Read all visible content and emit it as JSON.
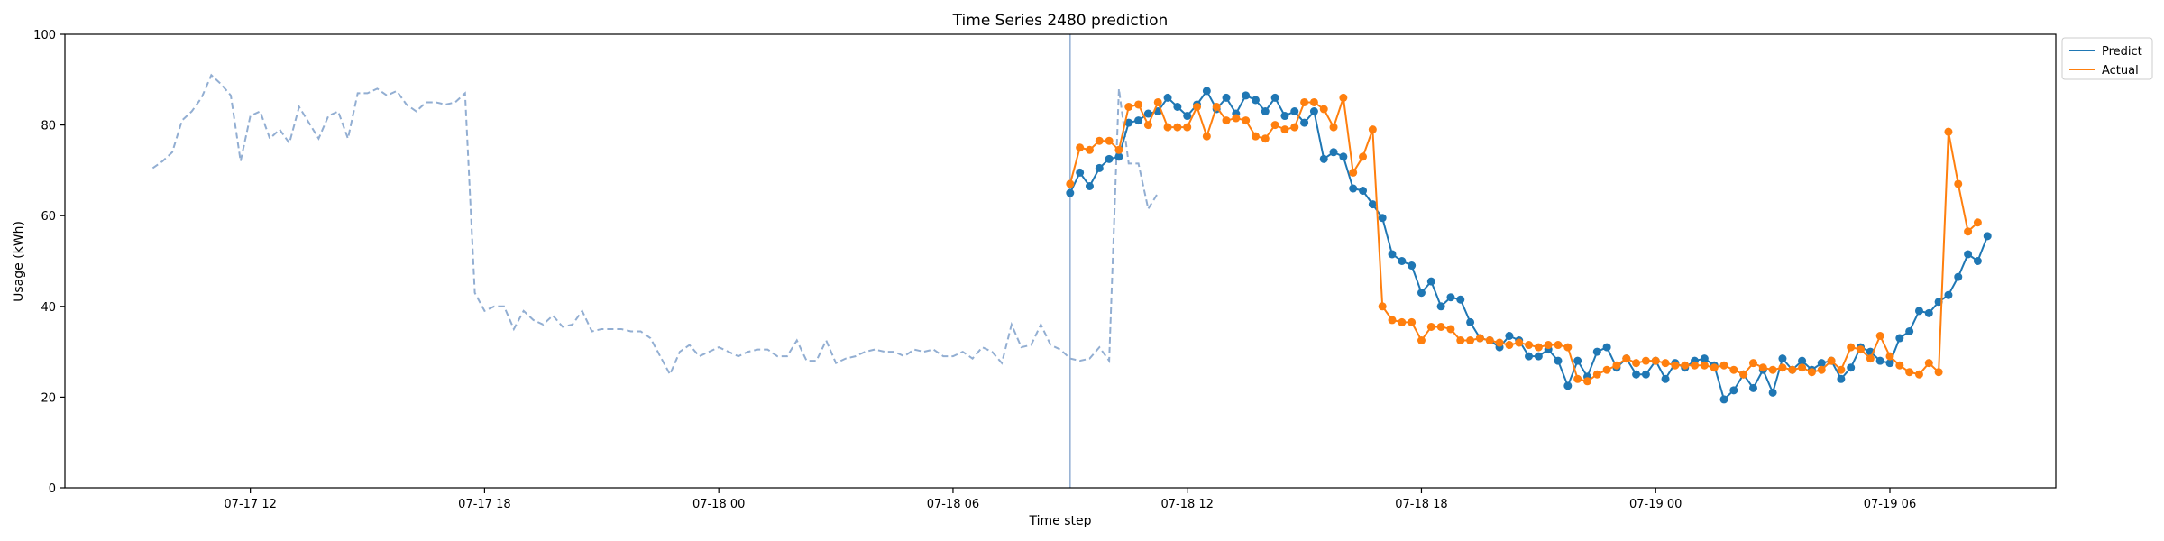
{
  "chart_data": {
    "type": "line",
    "title": "Time Series 2480 prediction",
    "xlabel": "Time step",
    "ylabel": "Usage (kWh)",
    "ylim": [
      0,
      100
    ],
    "yticks": [
      0,
      20,
      40,
      60,
      80,
      100
    ],
    "x_unit": "hours",
    "x_start": "07-17 07:15",
    "xlim_hours": [
      0,
      51
    ],
    "xticks": [
      {
        "label": "07-17 12",
        "hour": 4.75
      },
      {
        "label": "07-17 18",
        "hour": 10.75
      },
      {
        "label": "07-18 00",
        "hour": 16.75
      },
      {
        "label": "07-18 06",
        "hour": 22.75
      },
      {
        "label": "07-18 12",
        "hour": 28.75
      },
      {
        "label": "07-18 18",
        "hour": 34.75
      },
      {
        "label": "07-19 00",
        "hour": 40.75
      },
      {
        "label": "07-19 06",
        "hour": 46.75
      }
    ],
    "grid": false,
    "legend_position": "top-right",
    "split_hour": 25.75,
    "colors": {
      "history": "#92aed2",
      "predict": "#1f77b4",
      "actual": "#ff7f0e",
      "split": "#92aed2"
    },
    "history": {
      "start_hour": 2.25,
      "step_hours": 0.25,
      "values": [
        70.5,
        72,
        74,
        81,
        83,
        86,
        91,
        89,
        86.5,
        72,
        82,
        83,
        77,
        79,
        76,
        84,
        80.5,
        77,
        82,
        83,
        77,
        87,
        87,
        88,
        86.5,
        87.5,
        84.5,
        83,
        85,
        85,
        84.5,
        85,
        87,
        43,
        39,
        40,
        40,
        35,
        39,
        37,
        36,
        38,
        35.5,
        36,
        39,
        34.5,
        35,
        35,
        35,
        34.5,
        34.5,
        33,
        29,
        25,
        30,
        31.5,
        29,
        30,
        31,
        30,
        29,
        30,
        30.5,
        30.5,
        29,
        29,
        32.5,
        28,
        28,
        32.5,
        27.5,
        28.5,
        29,
        30,
        30.5,
        30,
        30,
        29,
        30.5,
        30,
        30.5,
        29,
        29,
        30,
        28.5,
        31,
        30,
        27.5,
        36,
        31,
        31.5,
        36,
        31.5,
        30.5,
        28.5,
        28,
        28.5,
        31,
        28,
        88,
        71.5,
        71.5,
        61.5,
        65
      ]
    },
    "series": [
      {
        "name": "Predict",
        "start_hour": 25.75,
        "step_hours": 0.25,
        "values": [
          65,
          69.5,
          66.5,
          70.5,
          72.5,
          73,
          80.5,
          81,
          82.5,
          83,
          86,
          84,
          82,
          84.5,
          87.5,
          83.5,
          86,
          82.5,
          86.5,
          85.5,
          83,
          86,
          82,
          83,
          80.5,
          83,
          72.5,
          74,
          73,
          66,
          65.5,
          62.5,
          59.5,
          51.5,
          50,
          49,
          43,
          45.5,
          40,
          42,
          41.5,
          36.5,
          33,
          32.5,
          31,
          33.5,
          32.5,
          29,
          29,
          30.5,
          28,
          22.5,
          28,
          24.5,
          30,
          31,
          26.5,
          28.5,
          25,
          25,
          28,
          24,
          27.5,
          26.5,
          28,
          28.5,
          27,
          19.5,
          21.5,
          25,
          22,
          26,
          21,
          28.5,
          26,
          28,
          26,
          27.5,
          28,
          24,
          26.5,
          31,
          30,
          28,
          27.5,
          33,
          34.5,
          39,
          38.5,
          41,
          42.5,
          46.5,
          51.5,
          50,
          55.5
        ]
      },
      {
        "name": "Actual",
        "start_hour": 25.75,
        "step_hours": 0.25,
        "values": [
          67,
          75,
          74.5,
          76.5,
          76.5,
          74.5,
          84,
          84.5,
          80,
          85,
          79.5,
          79.5,
          79.5,
          84,
          77.5,
          84,
          81,
          81.5,
          81,
          77.5,
          77,
          80,
          79,
          79.5,
          85,
          85,
          83.5,
          79.5,
          86,
          69.5,
          73,
          79,
          40,
          37,
          36.5,
          36.5,
          32.5,
          35.5,
          35.5,
          35,
          32.5,
          32.5,
          33,
          32.5,
          32,
          31.5,
          32,
          31.5,
          31,
          31.5,
          31.5,
          31,
          24,
          23.5,
          25,
          26,
          27,
          28.5,
          27.5,
          28,
          28,
          27.5,
          27,
          27,
          27,
          27,
          26.5,
          27,
          26,
          25,
          27.5,
          26.5,
          26,
          26.5,
          26,
          26.5,
          25.5,
          26,
          28,
          26,
          31,
          30.5,
          28.5,
          33.5,
          29,
          27,
          25.5,
          25,
          27.5,
          25.5,
          78.5,
          67,
          56.5,
          58.5
        ]
      }
    ]
  }
}
